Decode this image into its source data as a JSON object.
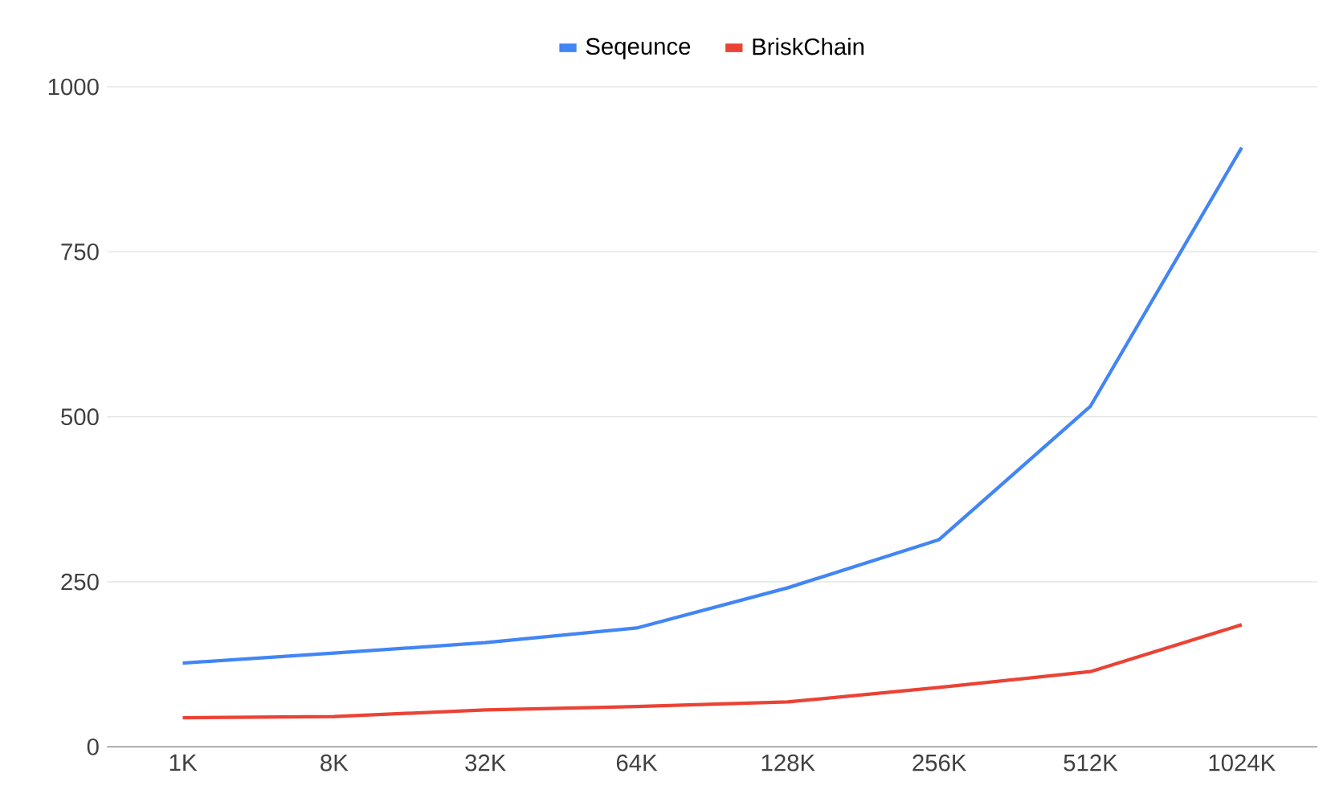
{
  "chart_data": {
    "type": "line",
    "categories": [
      "1K",
      "8K",
      "32K",
      "64K",
      "128K",
      "256K",
      "512K",
      "1024K"
    ],
    "series": [
      {
        "name": "Seqeunce",
        "color": "#4285f4",
        "values": [
          127,
          142,
          158,
          180,
          241,
          314,
          516,
          908
        ]
      },
      {
        "name": "BriskChain",
        "color": "#ea4335",
        "values": [
          44,
          46,
          56,
          61,
          68,
          90,
          114,
          185
        ]
      }
    ],
    "ylim": [
      0,
      1000
    ],
    "yticks": [
      0,
      250,
      500,
      750,
      1000
    ],
    "grid": "y",
    "legend": "top",
    "marker": "none",
    "line_style": "solid"
  }
}
